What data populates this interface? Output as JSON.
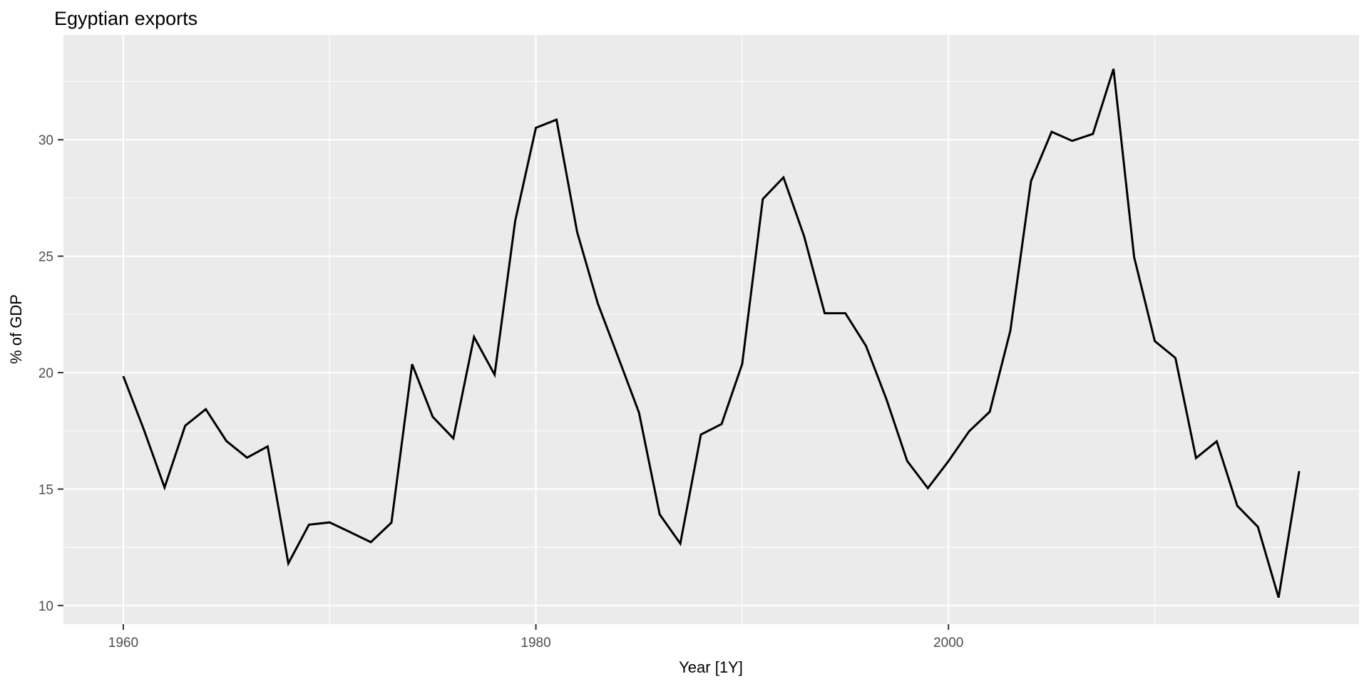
{
  "chart_data": {
    "type": "line",
    "title": "Egyptian exports",
    "xlabel": "Year [1Y]",
    "ylabel": "% of GDP",
    "legend": "none",
    "grid": true,
    "panel_bg": "#EBEBEB",
    "grid_color": "#FFFFFF",
    "line_color": "#000000",
    "tick_mark_color": "#333333",
    "tick_label_color": "#4D4D4D",
    "xlim": [
      1957.1,
      2019.9
    ],
    "ylim": [
      9.2,
      34.5
    ],
    "x_ticks": [
      1960,
      1980,
      2000
    ],
    "x_minor_ticks": [
      1970,
      1990,
      2010
    ],
    "y_ticks": [
      10,
      15,
      20,
      25,
      30
    ],
    "y_minor_ticks": [
      12.5,
      17.5,
      22.5,
      27.5,
      32.5
    ],
    "x": [
      1960,
      1961,
      1962,
      1963,
      1964,
      1965,
      1966,
      1967,
      1968,
      1969,
      1970,
      1971,
      1972,
      1973,
      1974,
      1975,
      1976,
      1977,
      1978,
      1979,
      1980,
      1981,
      1982,
      1983,
      1984,
      1985,
      1986,
      1987,
      1988,
      1989,
      1990,
      1991,
      1992,
      1993,
      1994,
      1995,
      1996,
      1997,
      1998,
      1999,
      2000,
      2001,
      2002,
      2003,
      2004,
      2005,
      2006,
      2007,
      2008,
      2009,
      2010,
      2011,
      2012,
      2013,
      2014,
      2015,
      2016,
      2017
    ],
    "values": [
      19.85,
      17.55,
      15.07,
      17.72,
      18.43,
      17.06,
      16.35,
      16.83,
      11.81,
      13.47,
      13.57,
      13.15,
      12.72,
      13.56,
      20.36,
      18.1,
      17.18,
      21.53,
      19.91,
      26.52,
      30.51,
      30.86,
      26.04,
      22.97,
      20.64,
      18.28,
      13.91,
      12.66,
      17.34,
      17.79,
      20.37,
      27.45,
      28.38,
      25.86,
      22.55,
      22.55,
      21.15,
      18.84,
      16.2,
      15.04,
      16.2,
      17.48,
      18.32,
      21.8,
      28.23,
      30.34,
      29.95,
      30.25,
      33.04,
      24.96,
      21.35,
      20.63,
      16.33,
      17.05,
      14.28,
      13.38,
      10.34,
      15.77
    ]
  }
}
